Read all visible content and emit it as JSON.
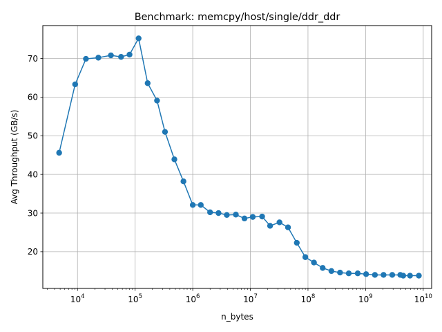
{
  "chart_data": {
    "type": "line",
    "title": "Benchmark: memcpy/host/single/ddr_ddr",
    "xlabel": "n_bytes",
    "ylabel": "Avg Throughput (GB/s)",
    "x_scale": "log",
    "grid": true,
    "legend": "none",
    "xlim": [
      2500,
      14000000000
    ],
    "ylim": [
      10.5,
      78.5
    ],
    "x_ticks": [
      {
        "base": "10",
        "exp": "4",
        "value": 10000
      },
      {
        "base": "10",
        "exp": "5",
        "value": 100000
      },
      {
        "base": "10",
        "exp": "6",
        "value": 1000000
      },
      {
        "base": "10",
        "exp": "7",
        "value": 10000000
      },
      {
        "base": "10",
        "exp": "8",
        "value": 100000000
      },
      {
        "base": "10",
        "exp": "9",
        "value": 1000000000
      },
      {
        "base": "10",
        "exp": "10",
        "value": 10000000000
      }
    ],
    "y_ticks": [
      "20",
      "30",
      "40",
      "50",
      "60",
      "70"
    ],
    "y_tick_values": [
      20,
      30,
      40,
      50,
      60,
      70
    ],
    "series_color": "#1f77b4",
    "series": [
      {
        "x": [
          4800,
          9100,
          14000,
          23000,
          38000,
          57000,
          80000,
          115000,
          165000,
          240000,
          330000,
          480000,
          690000,
          1000000,
          1380000,
          2000000,
          2800000,
          3900000,
          5600000,
          7900000,
          11000000,
          16000000,
          22000000,
          32000000,
          45000000,
          64000000,
          90000000,
          127000000,
          180000000,
          255000000,
          360000000,
          510000000,
          730000000,
          1020000000,
          1450000000,
          2050000000,
          2900000000,
          4000000000,
          4500000000,
          5900000000,
          8400000000
        ],
        "y": [
          45.6,
          63.3,
          69.9,
          70.2,
          70.8,
          70.4,
          71.0,
          75.2,
          63.6,
          59.1,
          51.0,
          43.9,
          38.2,
          32.1,
          32.1,
          30.2,
          30.0,
          29.5,
          29.6,
          28.6,
          29.0,
          29.1,
          26.7,
          27.6,
          26.3,
          22.3,
          18.6,
          17.2,
          15.8,
          15.0,
          14.6,
          14.4,
          14.4,
          14.2,
          14.0,
          14.0,
          14.0,
          14.0,
          13.8,
          13.8,
          13.8
        ]
      }
    ]
  }
}
